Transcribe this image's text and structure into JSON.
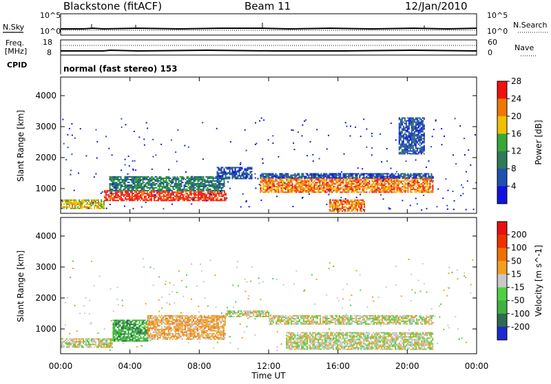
{
  "header": {
    "title": "Blackstone (fitACF)",
    "beam": "Beam 11",
    "date": "12/Jan/2010"
  },
  "noise_panel": {
    "left_label": "N.Sky",
    "left_ticks": [
      "10^5",
      "10^0"
    ],
    "right_ticks": [
      "10^5",
      "10^0"
    ],
    "right_label": "N.Search"
  },
  "freq_panel": {
    "left_label_1": "Freq.",
    "left_label_2": "[MHz]",
    "left_ticks": [
      "18",
      "8"
    ],
    "right_ticks": [
      "60",
      "0"
    ],
    "right_label": "Nave"
  },
  "cpid_panel": {
    "label": "CPID",
    "text": "normal (fast stereo) 153"
  },
  "chart_data": [
    {
      "type": "heatmap",
      "name": "power",
      "ylabel": "Slant Range [km]",
      "ylim": [
        200,
        4600
      ],
      "yticks": [
        1000,
        2000,
        3000,
        4000
      ],
      "xlim": [
        0,
        24
      ],
      "xtick_labels": [
        "00:00",
        "04:00",
        "08:00",
        "12:00",
        "16:00",
        "20:00",
        "00:00"
      ],
      "colorbar": {
        "label": "Power [dB]",
        "ticks": [
          "4",
          "8",
          "12",
          "16",
          "20",
          "24",
          "28"
        ],
        "colors": [
          "#1212e0",
          "#2050b0",
          "#2e7a5a",
          "#36a836",
          "#f0c000",
          "#f07800",
          "#f01010"
        ]
      },
      "regions": [
        {
          "x": [
            0.0,
            2.5
          ],
          "y": [
            380,
            650
          ],
          "level": 4
        },
        {
          "x": [
            2.5,
            9.5
          ],
          "y": [
            600,
            950
          ],
          "level": 6
        },
        {
          "x": [
            2.8,
            9.4
          ],
          "y": [
            950,
            1400
          ],
          "level": 2
        },
        {
          "x": [
            9.0,
            11.0
          ],
          "y": [
            1300,
            1700
          ],
          "level": 1
        },
        {
          "x": [
            11.5,
            21.5
          ],
          "y": [
            900,
            1350
          ],
          "level": 5
        },
        {
          "x": [
            11.5,
            21.5
          ],
          "y": [
            1350,
            1500
          ],
          "level": 1
        },
        {
          "x": [
            15.5,
            17.5
          ],
          "y": [
            250,
            650
          ],
          "level": 5
        },
        {
          "x": [
            19.5,
            21.0
          ],
          "y": [
            2100,
            3300
          ],
          "level": 1
        }
      ]
    },
    {
      "type": "heatmap",
      "name": "velocity",
      "ylabel": "Slant Range [km]",
      "xlabel": "Time UT",
      "ylim": [
        200,
        4600
      ],
      "yticks": [
        1000,
        2000,
        3000,
        4000
      ],
      "xlim": [
        0,
        24
      ],
      "xtick_labels": [
        "00:00",
        "04:00",
        "08:00",
        "12:00",
        "16:00",
        "20:00",
        "00:00"
      ],
      "colorbar": {
        "label": "Velocity [m s^-1]",
        "ticks": [
          "200",
          "100",
          "50",
          "15",
          "-15",
          "-50",
          "-100",
          "-200"
        ],
        "colors": [
          "#1a2ad0",
          "#2e6a50",
          "#40b040",
          "#50d040",
          "#c8c8c8",
          "#f0a020",
          "#f07000",
          "#f03000",
          "#e81010"
        ]
      },
      "regions": [
        {
          "x": [
            0.0,
            3.0
          ],
          "y": [
            400,
            700
          ],
          "level": 4
        },
        {
          "x": [
            3.0,
            5.0
          ],
          "y": [
            600,
            1300
          ],
          "level": 2
        },
        {
          "x": [
            5.0,
            9.5
          ],
          "y": [
            650,
            1450
          ],
          "level": 5
        },
        {
          "x": [
            9.5,
            12.0
          ],
          "y": [
            1400,
            1600
          ],
          "level": 4
        },
        {
          "x": [
            12.0,
            21.5
          ],
          "y": [
            1150,
            1450
          ],
          "level": 4
        },
        {
          "x": [
            13.0,
            21.5
          ],
          "y": [
            350,
            900
          ],
          "level": 4
        }
      ]
    }
  ]
}
